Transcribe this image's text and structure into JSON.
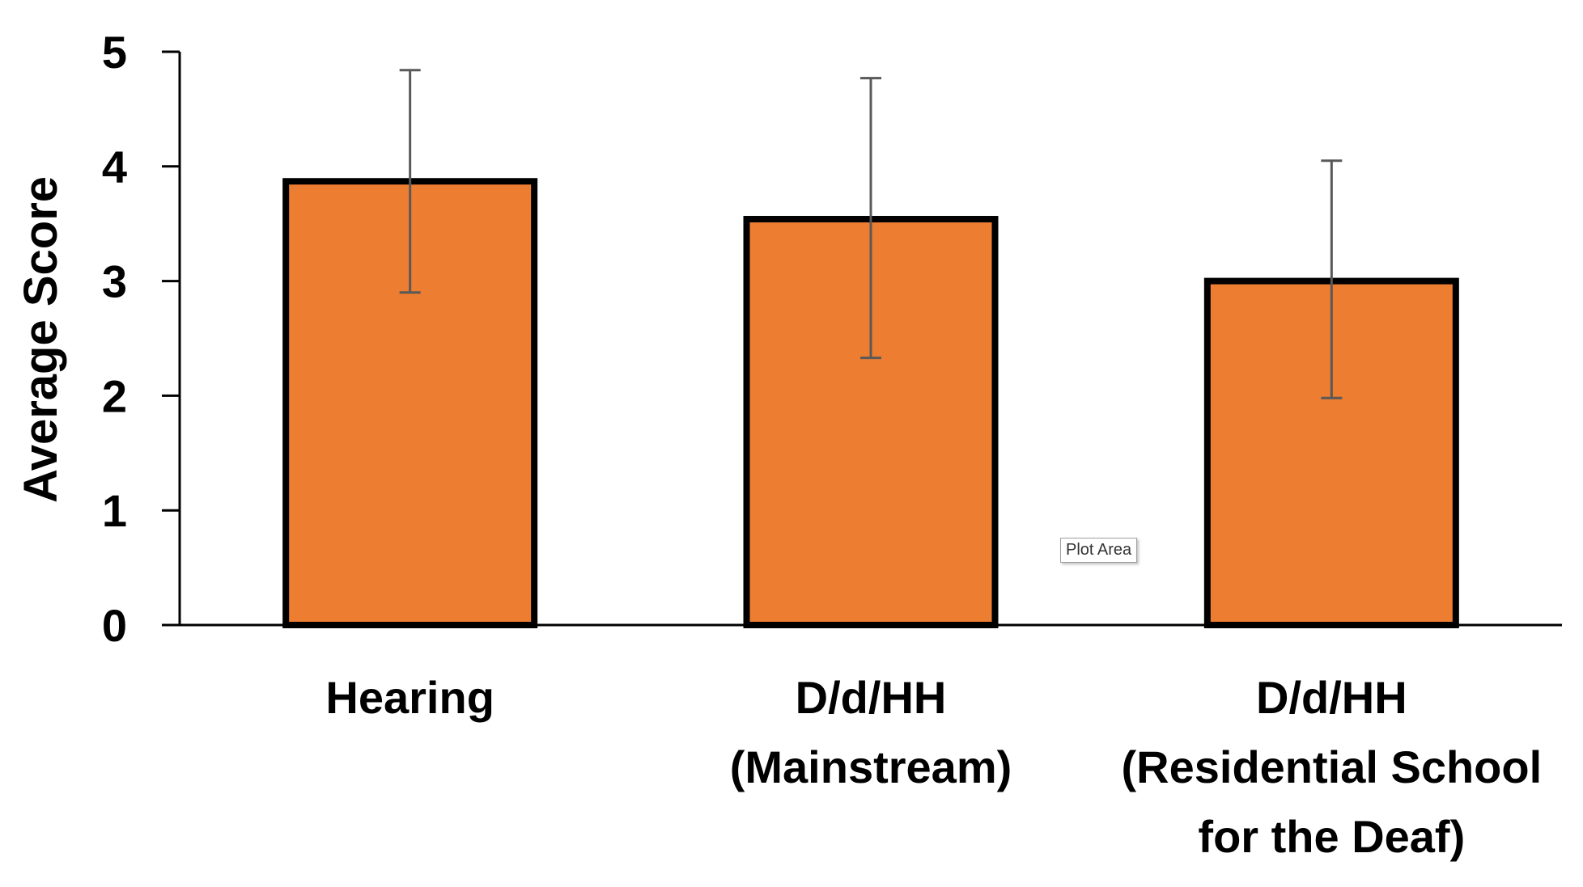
{
  "chart_data": {
    "type": "bar",
    "title": "",
    "xlabel": "",
    "ylabel": "Average Score",
    "ylim": [
      0,
      5
    ],
    "yticks": [
      "0",
      "1",
      "2",
      "3",
      "4",
      "5"
    ],
    "categories": [
      [
        "Hearing"
      ],
      [
        "D/d/HH",
        "(Mainstream)"
      ],
      [
        "D/d/HH",
        "(Residential School",
        "for the Deaf)"
      ]
    ],
    "values": [
      3.87,
      3.54,
      3.0
    ],
    "error_low": [
      2.9,
      2.33,
      1.98
    ],
    "error_high": [
      4.84,
      4.77,
      4.05
    ],
    "grid": false,
    "legend": "none",
    "colors": {
      "bar_fill": "#ED7D31",
      "bar_stroke": "#000000",
      "error_bar": "#595959",
      "axis": "#000000"
    }
  },
  "tooltip": {
    "label": "Plot Area"
  }
}
